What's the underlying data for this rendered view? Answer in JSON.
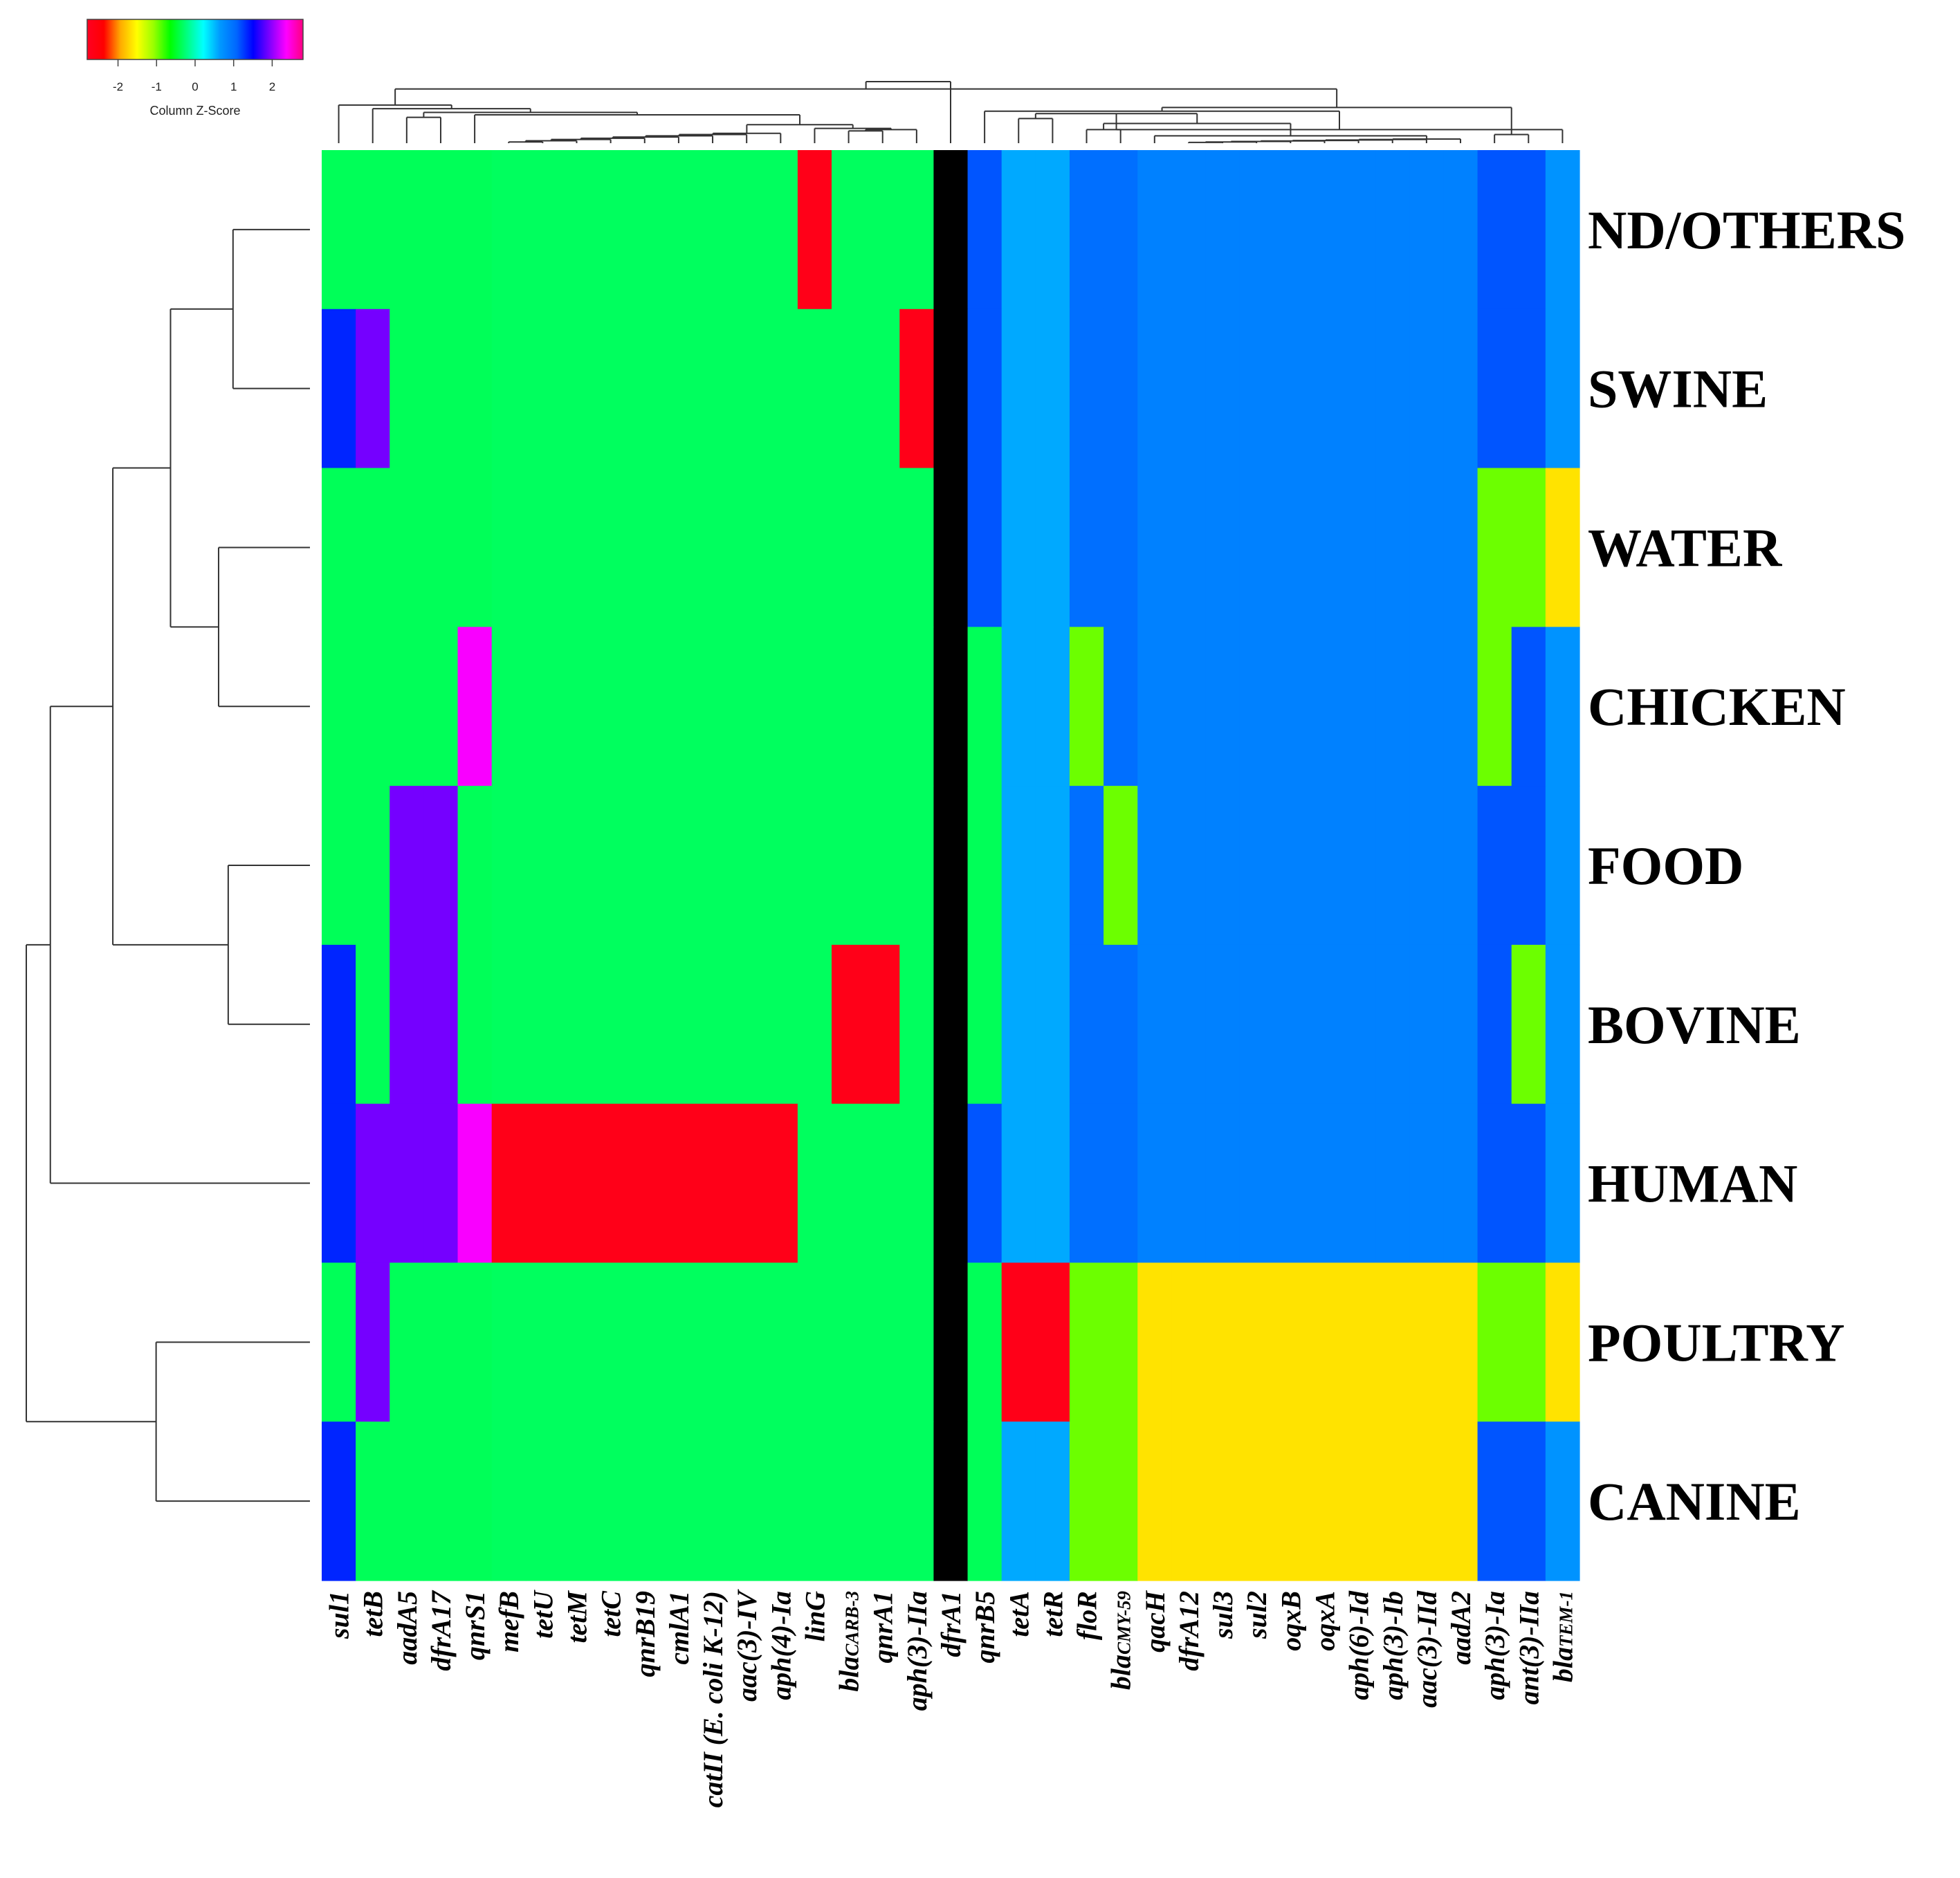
{
  "chart_data": {
    "type": "heatmap",
    "title": "",
    "rows": [
      "ND/OTHERS",
      "SWINE",
      "WATER",
      "CHICKEN",
      "FOOD",
      "BOVINE",
      "HUMAN",
      "POULTRY",
      "CANINE"
    ],
    "columns": [
      {
        "label": "sul1"
      },
      {
        "label": "tetB"
      },
      {
        "label": "aadA5"
      },
      {
        "label": "dfrA17"
      },
      {
        "label": "qnrS1"
      },
      {
        "label": "mefB"
      },
      {
        "label": "tetU"
      },
      {
        "label": "tetM"
      },
      {
        "label": "tetC"
      },
      {
        "label": "qnrB19"
      },
      {
        "label": "cmlA1"
      },
      {
        "label": "catII (E. coli K-12)"
      },
      {
        "label": "aac(3)-IV"
      },
      {
        "label": "aph(4)-Ia"
      },
      {
        "label": "linG"
      },
      {
        "label": "bla",
        "sub": "CARB-3"
      },
      {
        "label": "qnrA1"
      },
      {
        "label": "aph(3)-IIa"
      },
      {
        "label": "dfrA1"
      },
      {
        "label": "qnrB5"
      },
      {
        "label": "tetA"
      },
      {
        "label": "tetR"
      },
      {
        "label": "floR"
      },
      {
        "label": "bla",
        "sub": "CMY-59"
      },
      {
        "label": "qacH"
      },
      {
        "label": "dfrA12"
      },
      {
        "label": "sul3"
      },
      {
        "label": "sul2"
      },
      {
        "label": "oqxB"
      },
      {
        "label": "oqxA"
      },
      {
        "label": "aph(6)-Id"
      },
      {
        "label": "aph(3)-Ib"
      },
      {
        "label": "aac(3)-IId"
      },
      {
        "label": "aadA2"
      },
      {
        "label": "aph(3)-Ia"
      },
      {
        "label": "ant(3)-IIa"
      },
      {
        "label": "bla",
        "sub": "TEM-1"
      }
    ],
    "z_values": [
      [
        -0.35,
        -0.35,
        -0.35,
        -0.35,
        -0.35,
        -0.33,
        -0.33,
        -0.33,
        -0.33,
        -0.33,
        -0.33,
        -0.33,
        -0.33,
        -0.33,
        -2.67,
        -0.33,
        -0.33,
        -0.33,
        null,
        1.15,
        0.58,
        0.58,
        1.0,
        1.0,
        0.85,
        0.85,
        0.85,
        0.85,
        0.85,
        0.85,
        0.85,
        0.85,
        0.85,
        0.85,
        1.15,
        1.15,
        0.7
      ],
      [
        1.35,
        1.9,
        -0.35,
        -0.35,
        -0.35,
        -0.33,
        -0.33,
        -0.33,
        -0.33,
        -0.33,
        -0.33,
        -0.33,
        -0.33,
        -0.33,
        -0.33,
        -0.33,
        -0.33,
        -2.67,
        null,
        1.15,
        0.58,
        0.58,
        1.0,
        1.0,
        0.85,
        0.85,
        0.85,
        0.85,
        0.85,
        0.85,
        0.85,
        0.85,
        0.85,
        0.85,
        1.15,
        1.15,
        0.7
      ],
      [
        -0.35,
        -0.35,
        -0.35,
        -0.35,
        -0.35,
        -0.33,
        -0.33,
        -0.33,
        -0.33,
        -0.33,
        -0.33,
        -0.33,
        -0.33,
        -0.33,
        -0.33,
        -0.33,
        -0.33,
        -0.33,
        null,
        1.15,
        0.58,
        0.58,
        1.0,
        1.0,
        0.85,
        0.85,
        0.85,
        0.85,
        0.85,
        0.85,
        0.85,
        0.85,
        0.85,
        0.85,
        -0.95,
        -0.95,
        -1.65
      ],
      [
        -0.35,
        -0.35,
        -0.35,
        -0.35,
        2.35,
        -0.33,
        -0.33,
        -0.33,
        -0.33,
        -0.33,
        -0.33,
        -0.33,
        -0.33,
        -0.33,
        -0.33,
        -0.33,
        -0.33,
        -0.33,
        null,
        -0.35,
        0.58,
        0.58,
        -0.95,
        1.0,
        0.85,
        0.85,
        0.85,
        0.85,
        0.85,
        0.85,
        0.85,
        0.85,
        0.85,
        0.85,
        -0.95,
        1.15,
        0.7
      ],
      [
        -0.35,
        -0.35,
        1.9,
        1.9,
        -0.35,
        -0.33,
        -0.33,
        -0.33,
        -0.33,
        -0.33,
        -0.33,
        -0.33,
        -0.33,
        -0.33,
        -0.33,
        -0.33,
        -0.33,
        -0.33,
        null,
        -0.35,
        0.58,
        0.58,
        1.0,
        -0.95,
        0.85,
        0.85,
        0.85,
        0.85,
        0.85,
        0.85,
        0.85,
        0.85,
        0.85,
        0.85,
        1.15,
        1.15,
        0.7
      ],
      [
        1.35,
        -0.35,
        1.9,
        1.9,
        -0.35,
        -0.33,
        -0.33,
        -0.33,
        -0.33,
        -0.33,
        -0.33,
        -0.33,
        -0.33,
        -0.33,
        -0.33,
        -2.67,
        -2.67,
        -0.33,
        null,
        -0.35,
        0.58,
        0.58,
        1.0,
        1.0,
        0.85,
        0.85,
        0.85,
        0.85,
        0.85,
        0.85,
        0.85,
        0.85,
        0.85,
        0.85,
        1.15,
        -0.95,
        0.7
      ],
      [
        1.35,
        1.9,
        1.9,
        1.9,
        2.35,
        -2.67,
        -2.67,
        -2.67,
        -2.67,
        -2.67,
        -2.67,
        -2.67,
        -2.67,
        -2.67,
        -0.33,
        -0.33,
        -0.33,
        -0.33,
        null,
        1.15,
        0.58,
        0.58,
        1.0,
        1.0,
        0.85,
        0.85,
        0.85,
        0.85,
        0.85,
        0.85,
        0.85,
        0.85,
        0.85,
        0.85,
        1.15,
        1.15,
        0.7
      ],
      [
        -0.35,
        1.9,
        -0.35,
        -0.35,
        -0.35,
        -0.33,
        -0.33,
        -0.33,
        -0.33,
        -0.33,
        -0.33,
        -0.33,
        -0.33,
        -0.33,
        -0.33,
        -0.33,
        -0.33,
        -0.33,
        null,
        -0.35,
        -2.67,
        -2.67,
        -0.95,
        -0.95,
        -1.65,
        -1.65,
        -1.65,
        -1.65,
        -1.65,
        -1.65,
        -1.65,
        -1.65,
        -1.65,
        -1.65,
        -0.95,
        -0.95,
        -1.65
      ],
      [
        1.35,
        -0.35,
        -0.35,
        -0.35,
        -0.35,
        -0.33,
        -0.33,
        -0.33,
        -0.33,
        -0.33,
        -0.33,
        -0.33,
        -0.33,
        -0.33,
        -0.33,
        -0.33,
        -0.33,
        -0.33,
        null,
        -0.35,
        0.58,
        0.58,
        -0.95,
        -0.95,
        -1.65,
        -1.65,
        -1.65,
        -1.65,
        -1.65,
        -1.65,
        -1.65,
        -1.65,
        -1.65,
        -1.65,
        1.15,
        1.15,
        0.7
      ]
    ],
    "missing_color": "#000000",
    "color_scale": {
      "name": "rainbow",
      "range": [
        -2.8,
        2.8
      ],
      "stops": [
        "#ff0022",
        "#ff0000",
        "#ffaa00",
        "#ffff00",
        "#99ff00",
        "#00ff00",
        "#00ff80",
        "#00ffff",
        "#0099ff",
        "#0066ff",
        "#0000ff",
        "#8000ff",
        "#ff00ff",
        "#ff0080"
      ]
    },
    "legend": {
      "title": "Column Z-Score",
      "ticks": [
        "-2",
        "-1",
        "0",
        "1",
        "2"
      ],
      "tick_values": [
        -2,
        -1,
        0,
        1,
        2
      ],
      "placement": "top-left"
    },
    "row_dendrogram": {
      "merges": [
        [
          0,
          1,
          0.8
        ],
        [
          2,
          3,
          0.95
        ],
        [
          4,
          5,
          0.85
        ],
        [
          -1,
          -2,
          1.45
        ],
        [
          -3,
          -4,
          2.05
        ],
        [
          6,
          -5,
          2.7
        ],
        [
          7,
          8,
          1.6
        ],
        [
          -6,
          -7,
          2.95
        ]
      ]
    },
    "column_dendrogram": {
      "merges": [
        [
          5,
          6,
          0.05
        ],
        [
          -1,
          7,
          0.1
        ],
        [
          -2,
          8,
          0.15
        ],
        [
          -3,
          9,
          0.2
        ],
        [
          -4,
          10,
          0.25
        ],
        [
          -5,
          11,
          0.3
        ],
        [
          -6,
          12,
          0.35
        ],
        [
          -7,
          13,
          0.4
        ],
        [
          15,
          16,
          0.5
        ],
        [
          -9,
          17,
          0.55
        ],
        [
          14,
          -10,
          0.6
        ],
        [
          -8,
          -11,
          0.75
        ],
        [
          2,
          3,
          1.05
        ],
        [
          4,
          -12,
          1.15
        ],
        [
          -13,
          -14,
          1.25
        ],
        [
          1,
          -15,
          1.4
        ],
        [
          0,
          -16,
          1.55
        ],
        [
          25,
          26,
          0.03
        ],
        [
          -18,
          27,
          0.05
        ],
        [
          -19,
          28,
          0.07
        ],
        [
          -20,
          29,
          0.09
        ],
        [
          -21,
          30,
          0.11
        ],
        [
          -22,
          31,
          0.13
        ],
        [
          -23,
          32,
          0.15
        ],
        [
          -24,
          33,
          0.17
        ],
        [
          24,
          -25,
          0.3
        ],
        [
          22,
          23,
          0.55
        ],
        [
          -26,
          -27,
          0.8
        ],
        [
          20,
          21,
          1.0
        ],
        [
          -28,
          -29,
          1.2
        ],
        [
          34,
          35,
          0.35
        ],
        [
          -30,
          36,
          0.55
        ],
        [
          19,
          -32,
          1.3
        ],
        [
          -31,
          -33,
          1.45
        ],
        [
          -17,
          -34,
          2.2
        ],
        [
          18,
          -35,
          2.5
        ]
      ]
    }
  }
}
